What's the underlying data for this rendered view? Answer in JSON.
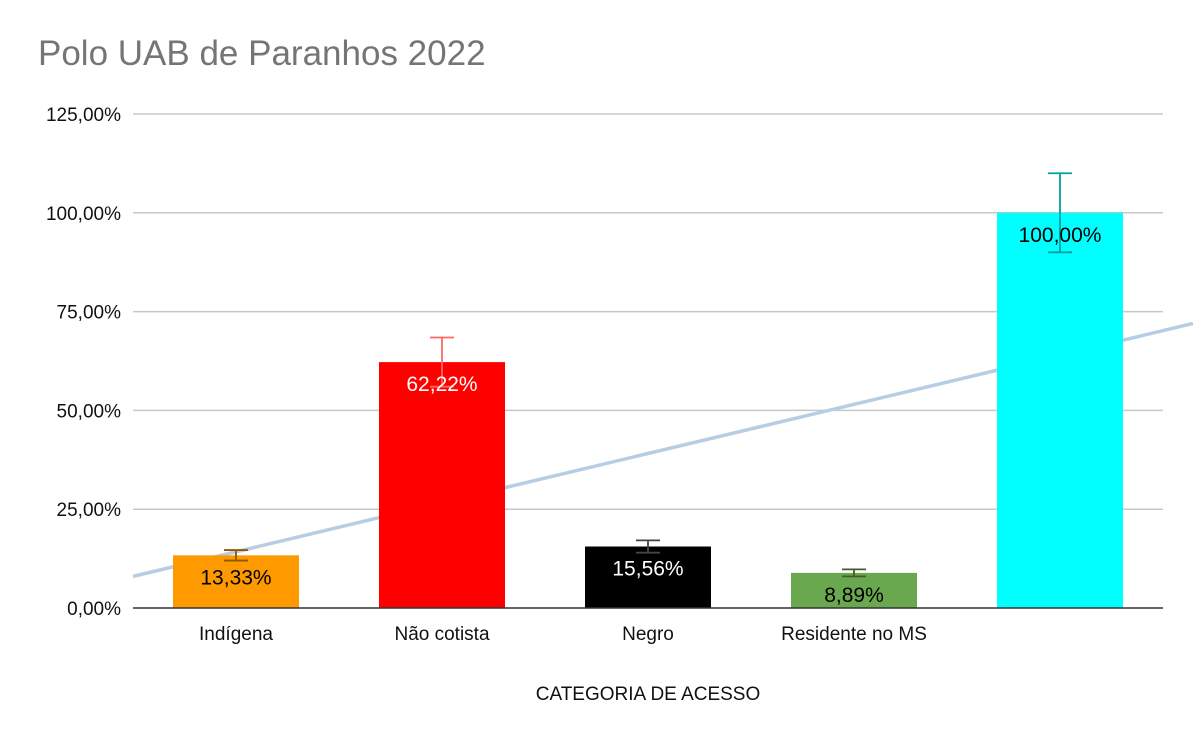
{
  "chart_data": {
    "type": "bar",
    "title": "Polo UAB de Paranhos 2022",
    "xlabel": "CATEGORIA DE ACESSO",
    "ylabel": "",
    "ylim": [
      0,
      125
    ],
    "y_ticks": [
      "0,00%",
      "25,00%",
      "50,00%",
      "75,00%",
      "100,00%",
      "125,00%"
    ],
    "categories": [
      "Indígena",
      "Não cotista",
      "Negro",
      "Residente no MS",
      ""
    ],
    "values": [
      13.33,
      62.22,
      15.56,
      8.89,
      100
    ],
    "data_labels": [
      "13,33%",
      "62,22%",
      "15,56%",
      "8,89%",
      "100,00%"
    ],
    "error_bars": [
      1.33,
      6.22,
      1.56,
      0.89,
      10
    ],
    "colors": [
      "#ff9900",
      "#ff0000",
      "#000000",
      "#6aa84f",
      "#00ffff"
    ],
    "label_colors": [
      "#000000",
      "#ffffff",
      "#ffffff",
      "#000000",
      "#000000"
    ],
    "error_colors": [
      "#8b5a00",
      "#ff6666",
      "#444444",
      "#445c2a",
      "#00a0a0"
    ],
    "trendline": {
      "type": "linear",
      "color": "#b7cde3",
      "y_start": 8,
      "y_end": 72
    },
    "grid": true,
    "legend": "none"
  }
}
